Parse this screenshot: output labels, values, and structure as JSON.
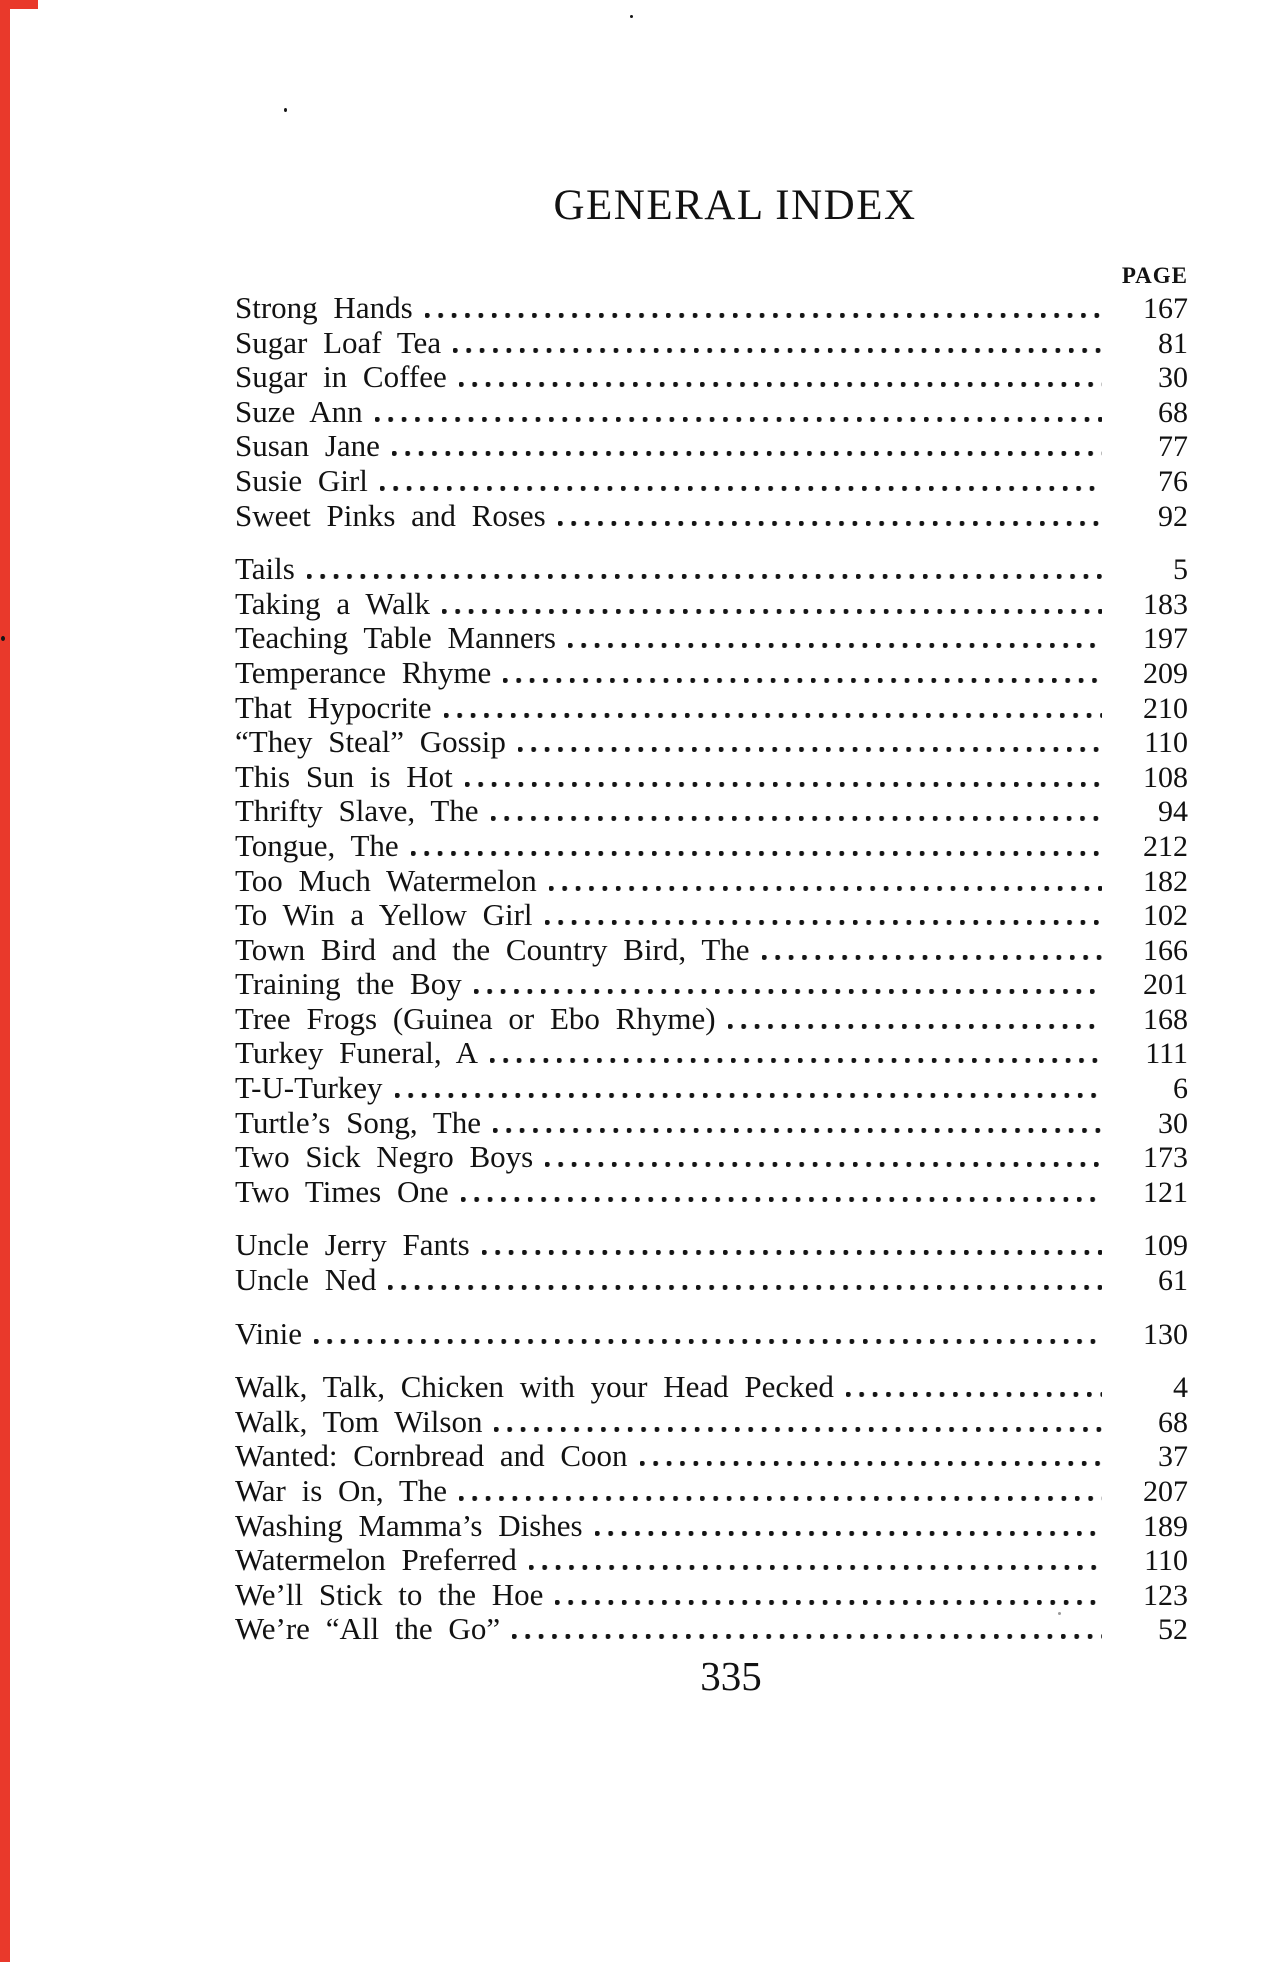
{
  "page": {
    "title": "GENERAL INDEX",
    "column_header": "PAGE",
    "folio": "335",
    "accent_color": "#e9392b"
  },
  "index": {
    "groups": [
      {
        "entries": [
          {
            "title": "Strong Hands",
            "page": "167"
          },
          {
            "title": "Sugar Loaf Tea",
            "page": "81"
          },
          {
            "title": "Sugar in Coffee",
            "page": "30"
          },
          {
            "title": "Suze Ann",
            "page": "68"
          },
          {
            "title": "Susan Jane",
            "page": "77"
          },
          {
            "title": "Susie Girl",
            "page": "76"
          },
          {
            "title": "Sweet Pinks and Roses",
            "page": "92"
          }
        ]
      },
      {
        "entries": [
          {
            "title": "Tails",
            "page": "5"
          },
          {
            "title": "Taking a Walk",
            "page": "183"
          },
          {
            "title": "Teaching Table Manners",
            "page": "197"
          },
          {
            "title": "Temperance Rhyme",
            "page": "209"
          },
          {
            "title": "That Hypocrite",
            "page": "210"
          },
          {
            "title": "“They Steal” Gossip",
            "page": "110"
          },
          {
            "title": "This Sun is Hot",
            "page": "108"
          },
          {
            "title": "Thrifty Slave, The",
            "page": "94"
          },
          {
            "title": "Tongue, The",
            "page": "212"
          },
          {
            "title": "Too Much Watermelon",
            "page": "182"
          },
          {
            "title": "To Win a Yellow Girl",
            "page": "102"
          },
          {
            "title": "Town Bird and the Country Bird, The",
            "page": "166"
          },
          {
            "title": "Training the Boy",
            "page": "201"
          },
          {
            "title": "Tree Frogs (Guinea or Ebo Rhyme)",
            "page": "168"
          },
          {
            "title": "Turkey Funeral, A",
            "page": "111"
          },
          {
            "title": "T-U-Turkey",
            "page": "6"
          },
          {
            "title": "Turtle’s Song, The",
            "page": "30"
          },
          {
            "title": "Two Sick Negro Boys",
            "page": "173"
          },
          {
            "title": "Two Times One",
            "page": "121"
          }
        ]
      },
      {
        "entries": [
          {
            "title": "Uncle Jerry Fants",
            "page": "109"
          },
          {
            "title": "Uncle Ned",
            "page": "61"
          }
        ]
      },
      {
        "entries": [
          {
            "title": "Vinie",
            "page": "130"
          }
        ]
      },
      {
        "entries": [
          {
            "title": "Walk, Talk, Chicken with your Head Pecked",
            "page": "4"
          },
          {
            "title": "Walk, Tom Wilson",
            "page": "68"
          },
          {
            "title": "Wanted: Cornbread and Coon",
            "page": "37"
          },
          {
            "title": "War is On, The",
            "page": "207"
          },
          {
            "title": "Washing Mamma’s Dishes",
            "page": "189"
          },
          {
            "title": "Watermelon Preferred",
            "page": "110"
          },
          {
            "title": "We’ll Stick to the Hoe",
            "page": "123"
          },
          {
            "title": "We’re “All the Go”",
            "page": "52"
          }
        ]
      }
    ]
  }
}
